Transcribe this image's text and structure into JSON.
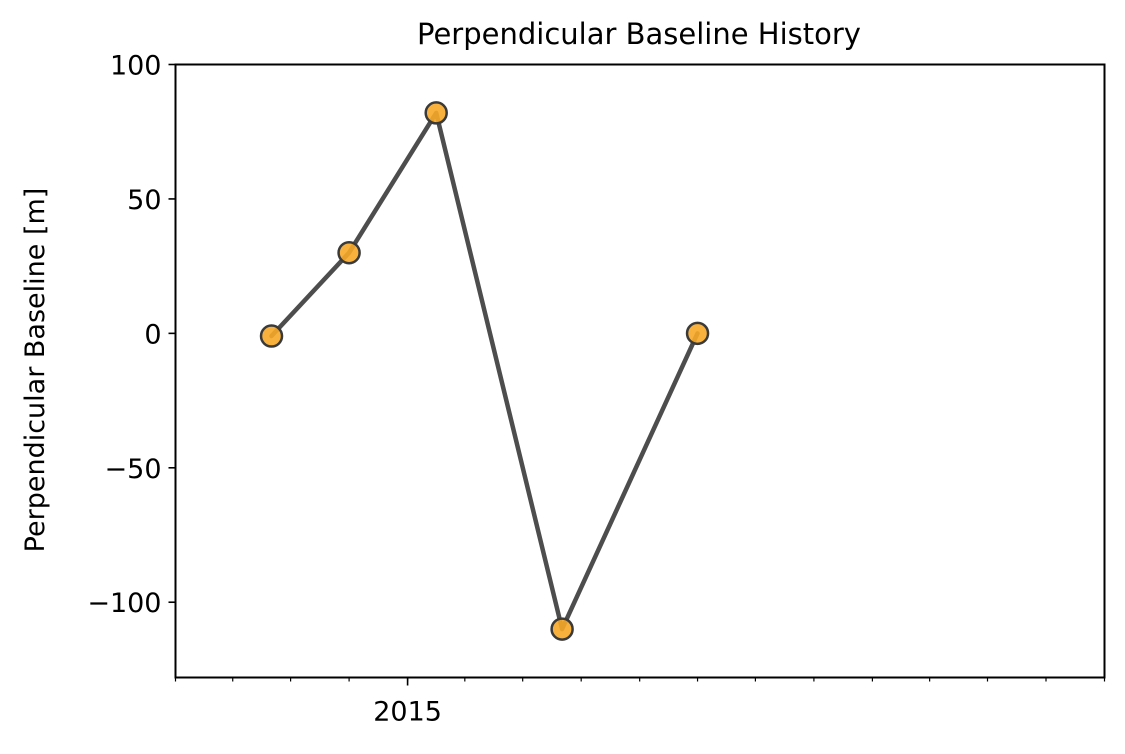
{
  "chart_data": {
    "type": "line",
    "title": "Perpendicular Baseline History",
    "xlabel": "",
    "ylabel": "Perpendicular Baseline [m]",
    "x_axis_kind": "date",
    "x_tick_labels": [
      {
        "date": "2015-01-01",
        "label": "2015"
      }
    ],
    "xlim": [
      "2014-01-01",
      "2018-01-01"
    ],
    "ylim": [
      -128,
      100
    ],
    "y_ticks": [
      100,
      50,
      0,
      -50,
      -100
    ],
    "y_tick_labels": [
      "100",
      "50",
      "0",
      "−50",
      "−100"
    ],
    "grid": false,
    "series": [
      {
        "x": [
          "2014-06-01",
          "2014-10-01",
          "2015-02-15",
          "2015-09-01",
          "2016-04-01"
        ],
        "y": [
          -1,
          30,
          82,
          -110,
          0
        ],
        "line_color": "#4d4d4d",
        "marker_color": "#f7a928",
        "marker_edge_color": "#3a3a3a"
      }
    ]
  }
}
